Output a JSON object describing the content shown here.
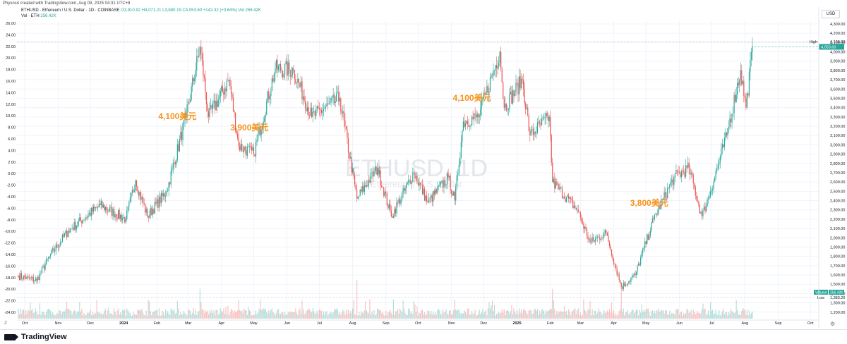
{
  "header": {
    "publisher_line": "Physns4 created with TradingView.com, Aug 09, 2025 04:31 UTC+8",
    "symbol_line": "ETHUSD · Ethereum / U.S. Dollar · 1D · COINBASE",
    "ohlc": "O3,910.92 H4,071.21 L3,880.19 C4,053.60 +142.32 (+3.64%)",
    "volume_summary": "Vol 256.42K",
    "vol_line_label": "Vol · ETH",
    "vol_line_value": "256.42K",
    "currency": "USD"
  },
  "watermark": {
    "symbol": "ETHUSD, 1D",
    "name": "Ethereum / U.S. Dollar"
  },
  "annotations": [
    {
      "text": "4,100美元",
      "date_index": 148
    },
    {
      "text": "3,900美元",
      "date_index": 215
    },
    {
      "text": "4,100美元",
      "date_index": 422
    },
    {
      "text": "3,800美元",
      "date_index": 587
    }
  ],
  "price_labels": {
    "high_label": "High",
    "high_value": "4,109.00",
    "last_value": "4,053.60",
    "volume_label": "Volume",
    "volume_value": "256.42K",
    "low_label": "Low",
    "low_value": "1,383.26"
  },
  "footer": {
    "brand": "TradingView",
    "zone": "2"
  },
  "colors": {
    "up": "#26a69a",
    "down": "#ef5350",
    "annotation": "#f7931a",
    "grid": "#f0f3fa"
  },
  "chart_data": {
    "type": "candlestick",
    "title": "ETHUSD · Ethereum / U.S. Dollar · 1D · COINBASE",
    "left_axis_ticks": [
      "26.00",
      "24.00",
      "22.00",
      "20.00",
      "18.00",
      "16.00",
      "14.00",
      "12.00",
      "10.00",
      "8.00",
      "6.00",
      "4.00",
      "2.00",
      "0.00",
      "-2.00",
      "-4.00",
      "-6.00",
      "-8.00",
      "-10.00",
      "-12.00",
      "-14.00",
      "-16.00",
      "-18.00",
      "-20.00",
      "-22.00",
      "-24.00"
    ],
    "right_axis_ticks": [
      "4,300.00",
      "4,200.00",
      "4,100.00",
      "4,000.00",
      "3,900.00",
      "3,800.00",
      "3,700.00",
      "3,600.00",
      "3,500.00",
      "3,400.00",
      "3,300.00",
      "3,200.00",
      "3,100.00",
      "3,000.00",
      "2,900.00",
      "2,800.00",
      "2,700.00",
      "2,600.00",
      "2,500.00",
      "2,400.00",
      "2,300.00",
      "2,200.00",
      "2,100.00",
      "2,000.00",
      "1,900.00",
      "1,800.00",
      "1,700.00",
      "1,600.00",
      "1,500.00",
      "1,400.00",
      "1,300.00",
      "1,200.00"
    ],
    "x_ticks": [
      "Oct",
      "Nov",
      "Dec",
      "2024",
      "Feb",
      "Mar",
      "Apr",
      "May",
      "Jun",
      "Jul",
      "Aug",
      "Sep",
      "Oct",
      "Nov",
      "Dec",
      "2025",
      "Feb",
      "Mar",
      "Apr",
      "May",
      "Jun",
      "Jul",
      "Aug",
      "Sep",
      "Oct"
    ],
    "price_range": [
      1130,
      4330
    ],
    "first_date": "2023-09-25",
    "last_date": "2025-08-08",
    "close_anchors": [
      {
        "date": "2023-09-25",
        "price": 1590
      },
      {
        "date": "2023-10-12",
        "price": 1540
      },
      {
        "date": "2023-10-24",
        "price": 1800
      },
      {
        "date": "2023-11-10",
        "price": 2070
      },
      {
        "date": "2023-12-10",
        "price": 2350
      },
      {
        "date": "2024-01-03",
        "price": 2200
      },
      {
        "date": "2024-01-12",
        "price": 2620
      },
      {
        "date": "2024-01-23",
        "price": 2230
      },
      {
        "date": "2024-02-10",
        "price": 2500
      },
      {
        "date": "2024-02-28",
        "price": 3300
      },
      {
        "date": "2024-03-12",
        "price": 4050
      },
      {
        "date": "2024-03-20",
        "price": 3300
      },
      {
        "date": "2024-04-08",
        "price": 3700
      },
      {
        "date": "2024-04-17",
        "price": 2990
      },
      {
        "date": "2024-05-01",
        "price": 2900
      },
      {
        "date": "2024-05-21",
        "price": 3820
      },
      {
        "date": "2024-06-07",
        "price": 3800
      },
      {
        "date": "2024-06-24",
        "price": 3300
      },
      {
        "date": "2024-07-20",
        "price": 3500
      },
      {
        "date": "2024-08-05",
        "price": 2420
      },
      {
        "date": "2024-08-24",
        "price": 2750
      },
      {
        "date": "2024-09-06",
        "price": 2230
      },
      {
        "date": "2024-09-27",
        "price": 2700
      },
      {
        "date": "2024-10-10",
        "price": 2380
      },
      {
        "date": "2024-10-29",
        "price": 2650
      },
      {
        "date": "2024-11-04",
        "price": 2400
      },
      {
        "date": "2024-11-12",
        "price": 3250
      },
      {
        "date": "2024-11-26",
        "price": 3300
      },
      {
        "date": "2024-12-16",
        "price": 4000
      },
      {
        "date": "2024-12-20",
        "price": 3400
      },
      {
        "date": "2025-01-06",
        "price": 3700
      },
      {
        "date": "2025-01-13",
        "price": 3100
      },
      {
        "date": "2025-01-31",
        "price": 3300
      },
      {
        "date": "2025-02-03",
        "price": 2600
      },
      {
        "date": "2025-02-26",
        "price": 2300
      },
      {
        "date": "2025-03-10",
        "price": 1950
      },
      {
        "date": "2025-03-25",
        "price": 2050
      },
      {
        "date": "2025-04-08",
        "price": 1470
      },
      {
        "date": "2025-04-21",
        "price": 1600
      },
      {
        "date": "2025-05-08",
        "price": 2200
      },
      {
        "date": "2025-05-27",
        "price": 2650
      },
      {
        "date": "2025-06-10",
        "price": 2750
      },
      {
        "date": "2025-06-22",
        "price": 2230
      },
      {
        "date": "2025-06-30",
        "price": 2500
      },
      {
        "date": "2025-07-15",
        "price": 3100
      },
      {
        "date": "2025-07-28",
        "price": 3800
      },
      {
        "date": "2025-08-02",
        "price": 3400
      },
      {
        "date": "2025-08-08",
        "price": 4053.6
      }
    ]
  }
}
